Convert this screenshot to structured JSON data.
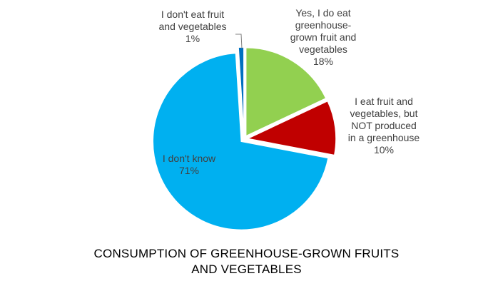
{
  "chart_data": {
    "type": "pie",
    "title_lines": [
      "CONSUMPTION OF GREENHOUSE-GROWN FRUITS",
      "AND VEGETABLES"
    ],
    "slices": [
      {
        "label_lines": [
          "Yes, I do eat",
          "greenhouse-",
          "grown fruit and",
          "vegetables"
        ],
        "value": 18,
        "value_label": "18%",
        "color": "#92d050"
      },
      {
        "label_lines": [
          "I eat fruit and",
          "vegetables, but",
          "NOT produced",
          "in a greenhouse"
        ],
        "value": 10,
        "value_label": "10%",
        "color": "#c00000"
      },
      {
        "label_lines": [
          "I don't know"
        ],
        "value": 71,
        "value_label": "71%",
        "color": "#00b0f0"
      },
      {
        "label_lines": [
          "I don't eat fruit",
          "and vegetables"
        ],
        "value": 1,
        "value_label": "1%",
        "color": "#0070c0"
      }
    ],
    "start_angle_deg": 0,
    "direction": "clockwise",
    "legend": "none"
  }
}
